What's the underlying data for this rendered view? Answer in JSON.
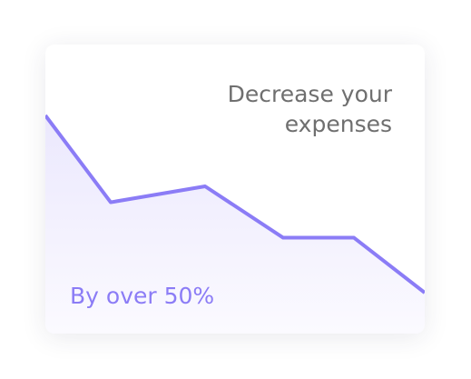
{
  "card": {
    "headline": "Decrease your\nexpenses",
    "subline": "By over 50%"
  },
  "colors": {
    "accent": "#8b7cf6",
    "headline_text": "#6f6f6f",
    "fill_top": "#ebe8fd",
    "fill_bottom": "#fbfaff"
  },
  "chart_data": {
    "type": "area",
    "x": [
      0,
      1,
      2,
      3,
      4,
      5
    ],
    "values": [
      100,
      51,
      60,
      31,
      31,
      0
    ],
    "ylim": [
      0,
      100
    ],
    "grid": false,
    "xlabel": "",
    "ylabel": ""
  }
}
